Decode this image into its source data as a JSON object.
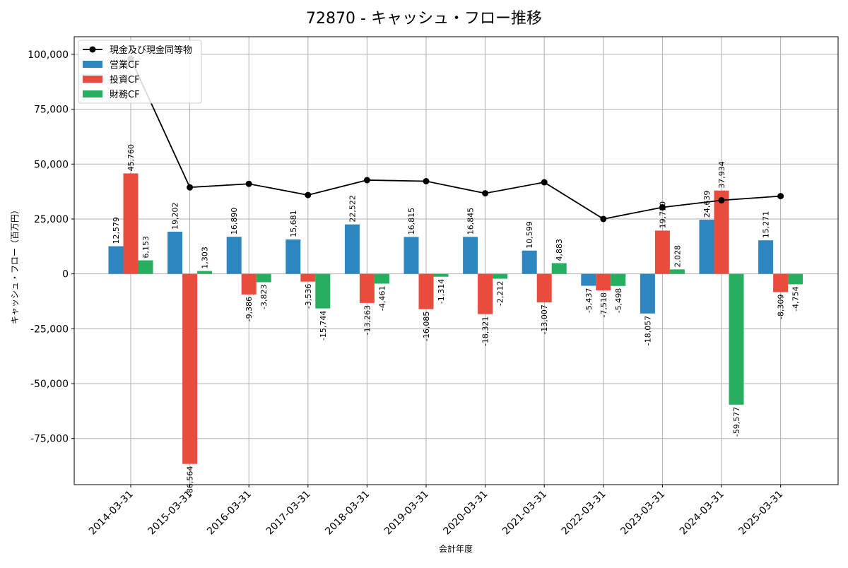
{
  "chart_data": {
    "type": "bar",
    "title": "72870 - キャッシュ・フロー推移",
    "xlabel": "会計年度",
    "ylabel": "キャッシュ・フロー（百万円）",
    "categories": [
      "2014-03-31",
      "2015-03-31",
      "2016-03-31",
      "2017-03-31",
      "2018-03-31",
      "2019-03-31",
      "2020-03-31",
      "2021-03-31",
      "2022-03-31",
      "2023-03-31",
      "2024-03-31",
      "2025-03-31"
    ],
    "ylim": [
      -96000,
      108000
    ],
    "yticks": [
      -75000,
      -50000,
      -25000,
      0,
      25000,
      50000,
      75000,
      100000
    ],
    "ytick_labels": [
      "-75,000",
      "-50,000",
      "-25,000",
      "0",
      "25,000",
      "50,000",
      "75,000",
      "100,000"
    ],
    "grid": true,
    "legend_position": "top-left",
    "series": [
      {
        "name": "営業CF",
        "kind": "bar",
        "color": "#2e86c1",
        "values": [
          12579,
          19202,
          16890,
          15681,
          22522,
          16815,
          16845,
          10599,
          -5437,
          -18057,
          24639,
          15271
        ],
        "labels": [
          "12,579",
          "19,202",
          "16,890",
          "15,681",
          "22,522",
          "16,815",
          "16,845",
          "10,599",
          "-5,437",
          "-18,057",
          "24,639",
          "15,271"
        ]
      },
      {
        "name": "投資CF",
        "kind": "bar",
        "color": "#e74c3c",
        "values": [
          45760,
          -86564,
          -9386,
          -3536,
          -13263,
          -16085,
          -18321,
          -13007,
          -7518,
          19710,
          37934,
          -8309
        ],
        "labels": [
          "45,760",
          "-86,564",
          "-9,386",
          "-3,536",
          "-13,263",
          "-16,085",
          "-18,321",
          "-13,007",
          "-7,518",
          "19,710",
          "37,934",
          "-8,309"
        ]
      },
      {
        "name": "財務CF",
        "kind": "bar",
        "color": "#27ae60",
        "values": [
          6153,
          1303,
          -3823,
          -15744,
          -4461,
          -1314,
          -2212,
          4883,
          -5498,
          2028,
          -59577,
          -4754
        ],
        "labels": [
          "6,153",
          "1,303",
          "-3,823",
          "-15,744",
          "-4,461",
          "-1,314",
          "-2,212",
          "4,883",
          "-5,498",
          "2,028",
          "-59,577",
          "-4,754"
        ]
      },
      {
        "name": "現金及び現金同等物",
        "kind": "line",
        "color": "#000000",
        "values": [
          98000,
          39400,
          41000,
          35900,
          42700,
          42200,
          36700,
          41700,
          25000,
          30300,
          33500,
          35400
        ]
      }
    ]
  }
}
